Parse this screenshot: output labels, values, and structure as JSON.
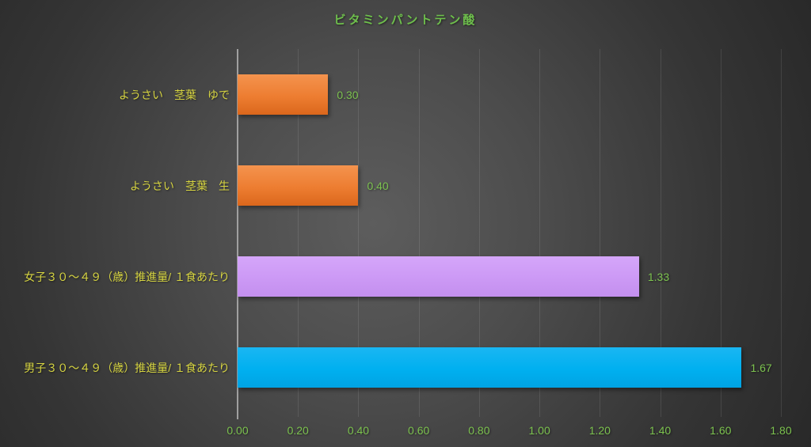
{
  "chart_data": {
    "type": "bar",
    "orientation": "horizontal",
    "title": "ビタミンパントテン酸",
    "categories": [
      "ようさい　茎葉　ゆで",
      "ようさい　茎葉　生",
      "女子３０～４９（歳）推進量/ １食あたり",
      "男子３０～４９（歳）推進量/ １食あたり"
    ],
    "values": [
      0.3,
      0.4,
      1.33,
      1.67
    ],
    "bars": [
      {
        "label": "ようさい　茎葉　ゆで",
        "value": 0.3,
        "value_label": "0.30",
        "color_light": "#f4934e",
        "color": "#ed7d31",
        "color_dark": "#db671c"
      },
      {
        "label": "ようさい　茎葉　生",
        "value": 0.4,
        "value_label": "0.40",
        "color_light": "#f4934e",
        "color": "#ed7d31",
        "color_dark": "#db671c"
      },
      {
        "label": "女子３０～４９（歳）推進量/ １食あたり",
        "value": 1.33,
        "value_label": "1.33",
        "color_light": "#d5a6fa",
        "color": "#cc99f5",
        "color_dark": "#c38fee"
      },
      {
        "label": "男子３０～４９（歳）推進量/ １食あたり",
        "value": 1.67,
        "value_label": "1.67",
        "color_light": "#1ab6f2",
        "color": "#00b0f0",
        "color_dark": "#00a3e3"
      }
    ],
    "xlabel": "",
    "ylabel": "",
    "xlim": [
      0.0,
      1.8
    ],
    "x_ticks": [
      "0.00",
      "0.20",
      "0.40",
      "0.60",
      "0.80",
      "1.00",
      "1.20",
      "1.40",
      "1.60",
      "1.80"
    ],
    "grid": true,
    "legend": "none",
    "colors": {
      "title": "#6ebf4c",
      "category_label": "#d6d441",
      "value_label": "#7cc24f",
      "tick_label": "#7cc24f",
      "axis_line": "#a0a0a0",
      "gridline": "rgba(255,255,255,0.10)",
      "background_center": "#5d5d5d",
      "background_edge": "#222222"
    }
  }
}
